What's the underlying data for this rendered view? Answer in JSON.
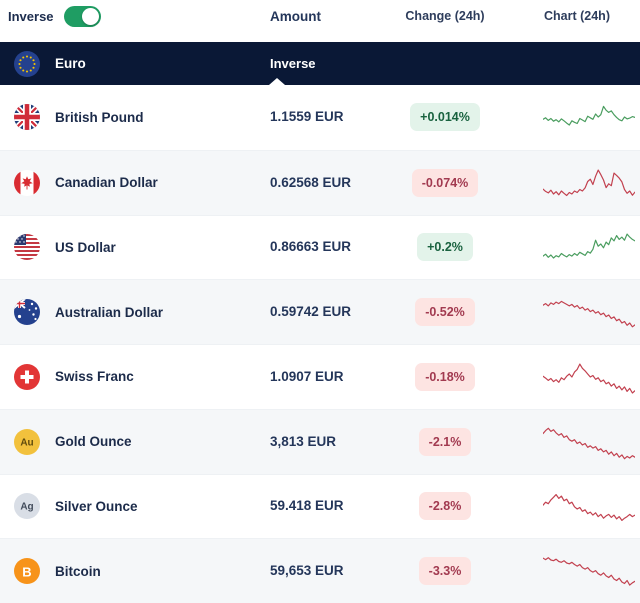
{
  "toolbar": {
    "inverse_label": "Inverse",
    "toggle_on": true,
    "columns": {
      "amount": "Amount",
      "change": "Change (24h)",
      "chart": "Chart (24h)"
    }
  },
  "base_row": {
    "name": "Euro",
    "icon": "eu",
    "mode_label": "Inverse"
  },
  "colors": {
    "navy": "#0a1836",
    "toggle_green": "#1f9d63",
    "up_bg": "#e3f3ea",
    "up_text": "#19623f",
    "down_bg": "#fde4e2",
    "down_text": "#a23a50",
    "spark_up": "#4a9d5f",
    "spark_down": "#c2414f"
  },
  "rows": [
    {
      "icon": "gb",
      "name": "British Pound",
      "amount": "1.1559 EUR",
      "change": "+0.014%",
      "direction": "up",
      "spark": [
        44,
        48,
        41,
        46,
        39,
        43,
        37,
        45,
        40,
        34,
        29,
        40,
        36,
        33,
        46,
        42,
        38,
        52,
        48,
        44,
        58,
        50,
        56,
        78,
        68,
        62,
        66,
        56,
        49,
        43,
        40,
        50,
        45,
        47,
        51,
        49
      ]
    },
    {
      "icon": "ca",
      "name": "Canadian Dollar",
      "amount": "0.62568 EUR",
      "change": "-0.074%",
      "direction": "down",
      "spark": [
        34,
        28,
        24,
        31,
        21,
        27,
        19,
        29,
        23,
        17,
        25,
        21,
        29,
        25,
        33,
        29,
        37,
        54,
        60,
        46,
        68,
        84,
        72,
        58,
        38,
        48,
        43,
        76,
        70,
        63,
        53,
        33,
        23,
        29,
        18,
        26
      ]
    },
    {
      "icon": "us",
      "name": "US Dollar",
      "amount": "0.86663 EUR",
      "change": "+0.2%",
      "direction": "up",
      "spark": [
        26,
        31,
        23,
        29,
        21,
        27,
        24,
        33,
        28,
        24,
        30,
        26,
        33,
        28,
        36,
        32,
        28,
        38,
        34,
        44,
        68,
        52,
        58,
        48,
        63,
        56,
        74,
        66,
        80,
        70,
        76,
        68,
        84,
        76,
        70,
        66
      ]
    },
    {
      "icon": "auflag",
      "name": "Australian Dollar",
      "amount": "0.59742 EUR",
      "change": "-0.52%",
      "direction": "down",
      "spark": [
        68,
        72,
        66,
        74,
        70,
        76,
        72,
        78,
        74,
        70,
        66,
        70,
        63,
        67,
        59,
        63,
        55,
        59,
        51,
        55,
        47,
        51,
        43,
        47,
        38,
        42,
        33,
        37,
        27,
        31,
        21,
        25,
        15,
        21,
        11,
        16
      ]
    },
    {
      "icon": "ch",
      "name": "Swiss Franc",
      "amount": "1.0907 EUR",
      "change": "-0.18%",
      "direction": "down",
      "spark": [
        52,
        47,
        41,
        46,
        38,
        43,
        36,
        48,
        43,
        52,
        58,
        50,
        63,
        70,
        84,
        73,
        66,
        58,
        50,
        54,
        44,
        48,
        38,
        42,
        32,
        36,
        26,
        32,
        20,
        26,
        16,
        24,
        12,
        20,
        8,
        14
      ]
    },
    {
      "icon": "gold",
      "name": "Gold Ounce",
      "amount": "3,813 EUR",
      "change": "-2.1%",
      "direction": "down",
      "icon_text": "Au",
      "spark": [
        72,
        80,
        86,
        78,
        82,
        74,
        68,
        72,
        62,
        66,
        56,
        52,
        56,
        46,
        50,
        42,
        46,
        36,
        40,
        34,
        38,
        28,
        32,
        24,
        28,
        18,
        24,
        14,
        20,
        10,
        16,
        6,
        12,
        8,
        14,
        10
      ]
    },
    {
      "icon": "silver",
      "name": "Silver Ounce",
      "amount": "59.418 EUR",
      "change": "-2.8%",
      "direction": "down",
      "icon_text": "Ag",
      "spark": [
        52,
        60,
        56,
        66,
        73,
        80,
        70,
        76,
        64,
        68,
        56,
        60,
        48,
        42,
        46,
        36,
        40,
        30,
        34,
        26,
        32,
        22,
        28,
        18,
        24,
        28,
        20,
        26,
        16,
        22,
        12,
        18,
        22,
        28,
        22,
        26
      ]
    },
    {
      "icon": "btc",
      "name": "Bitcoin",
      "amount": "59,653 EUR",
      "change": "-3.3%",
      "direction": "down",
      "icon_text": "B",
      "spark": [
        84,
        80,
        85,
        79,
        77,
        81,
        75,
        73,
        77,
        71,
        69,
        73,
        67,
        63,
        67,
        59,
        55,
        59,
        51,
        47,
        51,
        43,
        39,
        45,
        37,
        33,
        39,
        29,
        25,
        31,
        21,
        17,
        25,
        13,
        19,
        23
      ]
    }
  ]
}
